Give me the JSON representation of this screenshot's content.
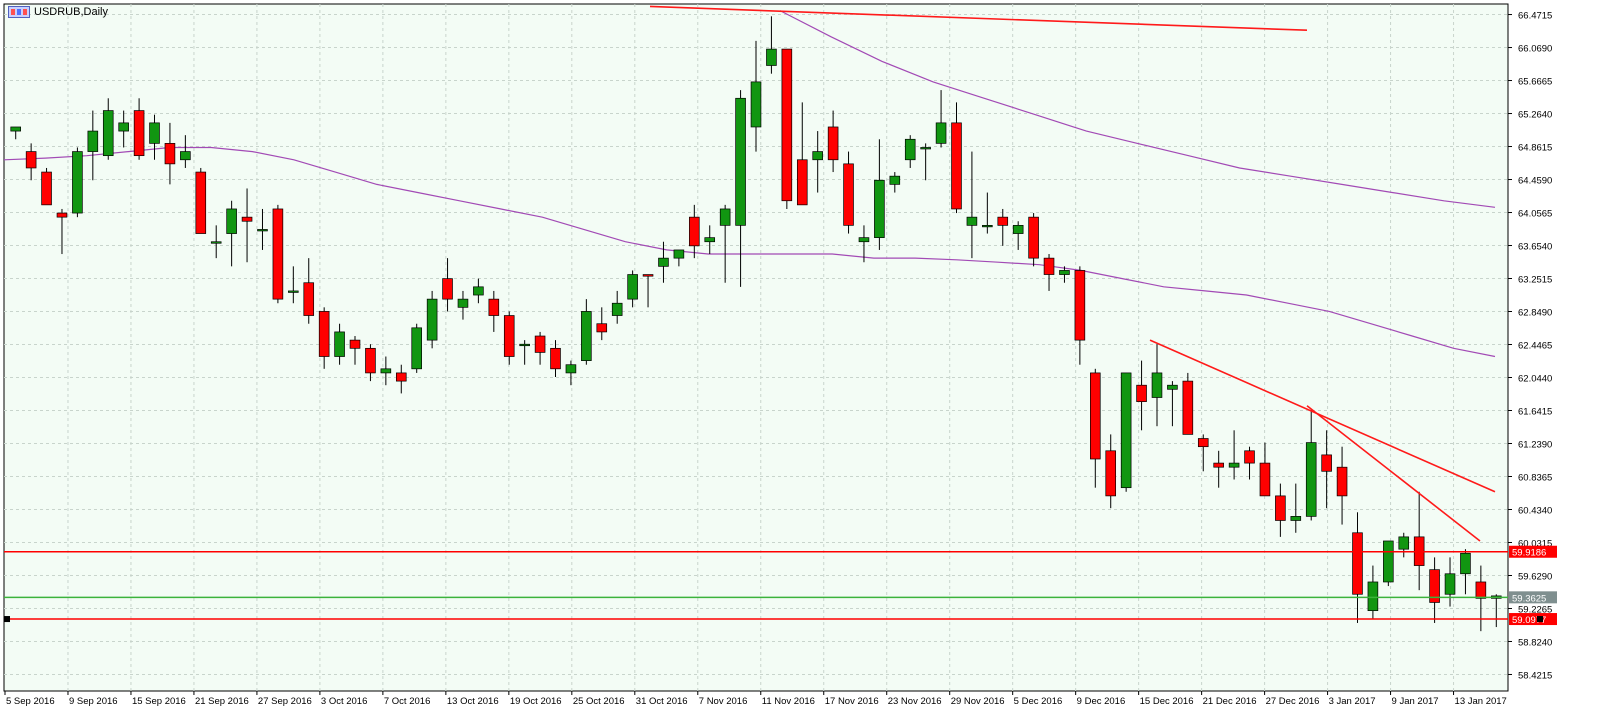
{
  "window": {
    "title": "USDRUB,Daily"
  },
  "colors": {
    "background": "#f3fcf5",
    "grid": "#c8d4cc",
    "bull": "#119611",
    "bear": "#ff0000",
    "ma": "#a24ab5",
    "hline_red": "#ff0000",
    "hline_green": "#3bb33b",
    "label_green_bg": "#7f8f8f"
  },
  "chart_data": {
    "type": "candlestick",
    "title": "USDRUB,Daily",
    "ylim": [
      58.22,
      66.6
    ],
    "y_ticks": [
      "66.4715",
      "66.0690",
      "65.6665",
      "65.2640",
      "64.8615",
      "64.4590",
      "64.0565",
      "63.6540",
      "63.2515",
      "62.8490",
      "62.4465",
      "62.0440",
      "61.6415",
      "61.2390",
      "60.8365",
      "60.4340",
      "60.0315",
      "59.6290",
      "59.2265",
      "58.8240",
      "58.4215"
    ],
    "x_ticks": [
      "5 Sep 2016",
      "9 Sep 2016",
      "15 Sep 2016",
      "21 Sep 2016",
      "27 Sep 2016",
      "3 Oct 2016",
      "7 Oct 2016",
      "13 Oct 2016",
      "19 Oct 2016",
      "25 Oct 2016",
      "31 Oct 2016",
      "7 Nov 2016",
      "11 Nov 2016",
      "17 Nov 2016",
      "23 Nov 2016",
      "29 Nov 2016",
      "5 Dec 2016",
      "9 Dec 2016",
      "15 Dec 2016",
      "21 Dec 2016",
      "27 Dec 2016",
      "3 Jan 2017",
      "9 Jan 2017",
      "13 Jan 2017"
    ],
    "candles": [
      {
        "o": 65.05,
        "h": 65.1,
        "l": 64.95,
        "c": 65.1
      },
      {
        "o": 64.8,
        "h": 64.9,
        "l": 64.45,
        "c": 64.6
      },
      {
        "o": 64.55,
        "h": 64.6,
        "l": 64.15,
        "c": 64.15
      },
      {
        "o": 64.05,
        "h": 64.1,
        "l": 63.55,
        "c": 64.0
      },
      {
        "o": 64.05,
        "h": 64.85,
        "l": 64.0,
        "c": 64.8
      },
      {
        "o": 64.8,
        "h": 65.3,
        "l": 64.45,
        "c": 65.05
      },
      {
        "o": 64.75,
        "h": 65.45,
        "l": 64.7,
        "c": 65.3
      },
      {
        "o": 65.05,
        "h": 65.3,
        "l": 64.85,
        "c": 65.15
      },
      {
        "o": 65.3,
        "h": 65.45,
        "l": 64.7,
        "c": 64.75
      },
      {
        "o": 64.9,
        "h": 65.25,
        "l": 64.7,
        "c": 65.15
      },
      {
        "o": 64.9,
        "h": 65.15,
        "l": 64.4,
        "c": 64.65
      },
      {
        "o": 64.7,
        "h": 65.0,
        "l": 64.6,
        "c": 64.8
      },
      {
        "o": 64.55,
        "h": 64.6,
        "l": 63.8,
        "c": 63.8
      },
      {
        "o": 63.7,
        "h": 63.9,
        "l": 63.5,
        "c": 63.7
      },
      {
        "o": 63.8,
        "h": 64.2,
        "l": 63.4,
        "c": 64.1
      },
      {
        "o": 64.0,
        "h": 64.35,
        "l": 63.45,
        "c": 63.95
      },
      {
        "o": 63.85,
        "h": 64.1,
        "l": 63.6,
        "c": 63.85
      },
      {
        "o": 64.1,
        "h": 64.15,
        "l": 62.95,
        "c": 63.0
      },
      {
        "o": 63.1,
        "h": 63.4,
        "l": 62.95,
        "c": 63.1
      },
      {
        "o": 63.2,
        "h": 63.5,
        "l": 62.7,
        "c": 62.8
      },
      {
        "o": 62.85,
        "h": 62.9,
        "l": 62.15,
        "c": 62.3
      },
      {
        "o": 62.3,
        "h": 62.7,
        "l": 62.2,
        "c": 62.6
      },
      {
        "o": 62.5,
        "h": 62.55,
        "l": 62.2,
        "c": 62.4
      },
      {
        "o": 62.4,
        "h": 62.45,
        "l": 62.0,
        "c": 62.1
      },
      {
        "o": 62.1,
        "h": 62.3,
        "l": 61.95,
        "c": 62.15
      },
      {
        "o": 62.1,
        "h": 62.2,
        "l": 61.85,
        "c": 62.0
      },
      {
        "o": 62.15,
        "h": 62.7,
        "l": 62.1,
        "c": 62.65
      },
      {
        "o": 62.5,
        "h": 63.1,
        "l": 62.4,
        "c": 63.0
      },
      {
        "o": 63.25,
        "h": 63.5,
        "l": 62.85,
        "c": 63.0
      },
      {
        "o": 62.9,
        "h": 63.1,
        "l": 62.75,
        "c": 63.0
      },
      {
        "o": 63.05,
        "h": 63.25,
        "l": 62.95,
        "c": 63.15
      },
      {
        "o": 63.0,
        "h": 63.1,
        "l": 62.6,
        "c": 62.8
      },
      {
        "o": 62.8,
        "h": 62.85,
        "l": 62.2,
        "c": 62.3
      },
      {
        "o": 62.45,
        "h": 62.5,
        "l": 62.2,
        "c": 62.45
      },
      {
        "o": 62.55,
        "h": 62.6,
        "l": 62.2,
        "c": 62.35
      },
      {
        "o": 62.4,
        "h": 62.5,
        "l": 62.05,
        "c": 62.15
      },
      {
        "o": 62.1,
        "h": 62.25,
        "l": 61.95,
        "c": 62.2
      },
      {
        "o": 62.25,
        "h": 63.0,
        "l": 62.2,
        "c": 62.85
      },
      {
        "o": 62.7,
        "h": 62.9,
        "l": 62.5,
        "c": 62.6
      },
      {
        "o": 62.8,
        "h": 63.1,
        "l": 62.7,
        "c": 62.95
      },
      {
        "o": 63.0,
        "h": 63.35,
        "l": 62.9,
        "c": 63.3
      },
      {
        "o": 63.3,
        "h": 63.3,
        "l": 62.9,
        "c": 63.28
      },
      {
        "o": 63.4,
        "h": 63.7,
        "l": 63.2,
        "c": 63.5
      },
      {
        "o": 63.5,
        "h": 63.6,
        "l": 63.4,
        "c": 63.6
      },
      {
        "o": 64.0,
        "h": 64.15,
        "l": 63.5,
        "c": 63.65
      },
      {
        "o": 63.7,
        "h": 63.9,
        "l": 63.55,
        "c": 63.75
      },
      {
        "o": 63.9,
        "h": 64.15,
        "l": 63.2,
        "c": 64.1
      },
      {
        "o": 63.9,
        "h": 65.55,
        "l": 63.15,
        "c": 65.45
      },
      {
        "o": 65.1,
        "h": 66.15,
        "l": 64.8,
        "c": 65.65
      },
      {
        "o": 65.85,
        "h": 66.45,
        "l": 65.75,
        "c": 66.05
      },
      {
        "o": 66.05,
        "h": 66.05,
        "l": 64.1,
        "c": 64.2
      },
      {
        "o": 64.7,
        "h": 65.4,
        "l": 64.15,
        "c": 64.15
      },
      {
        "o": 64.7,
        "h": 65.05,
        "l": 64.3,
        "c": 64.8
      },
      {
        "o": 65.1,
        "h": 65.3,
        "l": 64.55,
        "c": 64.7
      },
      {
        "o": 64.65,
        "h": 64.8,
        "l": 63.8,
        "c": 63.9
      },
      {
        "o": 63.7,
        "h": 63.9,
        "l": 63.45,
        "c": 63.75
      },
      {
        "o": 63.75,
        "h": 64.95,
        "l": 63.6,
        "c": 64.45
      },
      {
        "o": 64.4,
        "h": 64.55,
        "l": 64.3,
        "c": 64.5
      },
      {
        "o": 64.7,
        "h": 65.0,
        "l": 64.6,
        "c": 64.95
      },
      {
        "o": 64.85,
        "h": 64.9,
        "l": 64.45,
        "c": 64.85
      },
      {
        "o": 64.9,
        "h": 65.55,
        "l": 64.85,
        "c": 65.15
      },
      {
        "o": 65.15,
        "h": 65.4,
        "l": 64.05,
        "c": 64.1
      },
      {
        "o": 63.9,
        "h": 64.8,
        "l": 63.5,
        "c": 64.0
      },
      {
        "o": 63.9,
        "h": 64.3,
        "l": 63.8,
        "c": 63.9
      },
      {
        "o": 64.0,
        "h": 64.1,
        "l": 63.65,
        "c": 63.9
      },
      {
        "o": 63.8,
        "h": 63.95,
        "l": 63.6,
        "c": 63.9
      },
      {
        "o": 64.0,
        "h": 64.05,
        "l": 63.4,
        "c": 63.5
      },
      {
        "o": 63.5,
        "h": 63.55,
        "l": 63.1,
        "c": 63.3
      },
      {
        "o": 63.3,
        "h": 63.4,
        "l": 63.2,
        "c": 63.35
      },
      {
        "o": 63.35,
        "h": 63.4,
        "l": 62.2,
        "c": 62.5
      },
      {
        "o": 62.1,
        "h": 62.15,
        "l": 60.7,
        "c": 61.05
      },
      {
        "o": 61.15,
        "h": 61.35,
        "l": 60.45,
        "c": 60.6
      },
      {
        "o": 60.7,
        "h": 62.1,
        "l": 60.65,
        "c": 62.1
      },
      {
        "o": 61.95,
        "h": 62.25,
        "l": 61.4,
        "c": 61.75
      },
      {
        "o": 61.8,
        "h": 62.45,
        "l": 61.45,
        "c": 62.1
      },
      {
        "o": 61.9,
        "h": 62.0,
        "l": 61.45,
        "c": 61.95
      },
      {
        "o": 62.0,
        "h": 62.1,
        "l": 61.35,
        "c": 61.35
      },
      {
        "o": 61.3,
        "h": 61.35,
        "l": 60.9,
        "c": 61.2
      },
      {
        "o": 61.0,
        "h": 61.15,
        "l": 60.7,
        "c": 60.95
      },
      {
        "o": 60.95,
        "h": 61.4,
        "l": 60.8,
        "c": 61.0
      },
      {
        "o": 61.15,
        "h": 61.2,
        "l": 60.8,
        "c": 61.0
      },
      {
        "o": 61.0,
        "h": 61.25,
        "l": 60.65,
        "c": 60.6
      },
      {
        "o": 60.6,
        "h": 60.75,
        "l": 60.1,
        "c": 60.3
      },
      {
        "o": 60.3,
        "h": 60.75,
        "l": 60.15,
        "c": 60.35
      },
      {
        "o": 60.35,
        "h": 61.65,
        "l": 60.3,
        "c": 61.25
      },
      {
        "o": 61.1,
        "h": 61.4,
        "l": 60.45,
        "c": 60.9
      },
      {
        "o": 60.95,
        "h": 61.2,
        "l": 60.25,
        "c": 60.6
      },
      {
        "o": 60.15,
        "h": 60.4,
        "l": 59.05,
        "c": 59.4
      },
      {
        "o": 59.2,
        "h": 59.75,
        "l": 59.1,
        "c": 59.55
      },
      {
        "o": 59.55,
        "h": 60.05,
        "l": 59.5,
        "c": 60.05
      },
      {
        "o": 59.95,
        "h": 60.15,
        "l": 59.85,
        "c": 60.1
      },
      {
        "o": 60.1,
        "h": 60.65,
        "l": 59.45,
        "c": 59.75
      },
      {
        "o": 59.7,
        "h": 59.85,
        "l": 59.05,
        "c": 59.3
      },
      {
        "o": 59.4,
        "h": 59.85,
        "l": 59.25,
        "c": 59.65
      },
      {
        "o": 59.65,
        "h": 59.95,
        "l": 59.4,
        "c": 59.9
      },
      {
        "o": 59.55,
        "h": 59.75,
        "l": 58.95,
        "c": 59.35
      },
      {
        "o": 59.35,
        "h": 59.4,
        "l": 59.0,
        "c": 59.38
      }
    ],
    "moving_averages": [
      {
        "name": "MA1",
        "values": [
          64.7,
          64.72,
          64.75,
          64.8,
          64.85,
          64.85,
          64.8,
          64.7,
          64.55,
          64.4,
          64.3,
          64.2,
          64.1,
          64.0,
          63.85,
          63.7,
          63.6,
          63.55,
          63.55,
          63.55,
          63.55,
          63.5,
          63.5,
          63.48,
          63.45,
          63.42,
          63.35,
          63.25,
          63.15,
          63.1,
          63.05,
          62.95,
          62.85,
          62.7,
          62.55,
          62.4,
          62.3
        ]
      },
      {
        "name": "MA2",
        "values": [
          66.52,
          66.2,
          65.9,
          65.65,
          65.45,
          65.25,
          65.05,
          64.9,
          64.75,
          64.6,
          64.5,
          64.4,
          64.3,
          64.2,
          64.12
        ]
      }
    ],
    "trend_lines": [
      {
        "from": [
          "31 Oct 2016",
          66.57
        ],
        "to": [
          "27 Dec 2016",
          66.28
        ]
      },
      {
        "from": [
          "15 Dec 2016",
          62.5
        ],
        "to": [
          "13 Jan 2017+",
          60.65
        ]
      },
      {
        "from": [
          "27 Dec 2016",
          61.7
        ],
        "to": [
          "11 Jan 2017",
          60.05
        ]
      }
    ],
    "horizontal_lines": [
      {
        "value": 59.9186,
        "label": "59.9186",
        "color": "red"
      },
      {
        "value": 59.3625,
        "label": "59.3625",
        "color": "green"
      },
      {
        "value": 59.0977,
        "label": "59.0977",
        "color": "red"
      }
    ],
    "grid": true
  }
}
